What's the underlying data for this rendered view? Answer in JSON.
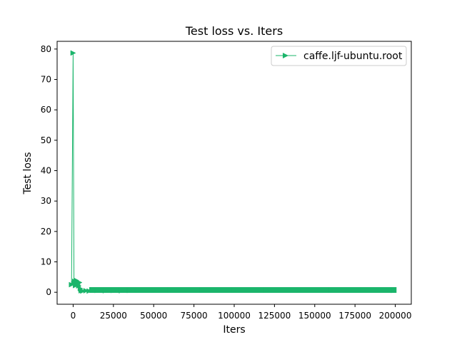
{
  "chart_data": {
    "type": "line",
    "title": "Test loss  vs. Iters",
    "xlabel": "Iters",
    "ylabel": "Test loss",
    "xlim": [
      -9950,
      209950
    ],
    "ylim": [
      -3.94,
      82.54
    ],
    "xticks": [
      0,
      25000,
      50000,
      75000,
      100000,
      125000,
      150000,
      175000,
      200000
    ],
    "xtick_labels": [
      "0",
      "25000",
      "50000",
      "75000",
      "100000",
      "125000",
      "150000",
      "175000",
      "200000"
    ],
    "yticks": [
      0,
      10,
      20,
      30,
      40,
      50,
      60,
      70,
      80
    ],
    "ytick_labels": [
      "0",
      "10",
      "20",
      "30",
      "40",
      "50",
      "60",
      "70",
      "80"
    ],
    "grid": false,
    "legend_position": "top-right",
    "series": [
      {
        "name": "caffe.ljf-ubuntu.root",
        "color": "#1bb56b",
        "marker": "triangle-right",
        "x": [
          -1000,
          0,
          500,
          1000,
          1500,
          2000,
          2500,
          3000,
          3500,
          4000,
          4500,
          5000,
          6000,
          8000,
          10000,
          15000,
          20000,
          25000,
          30000,
          35000,
          40000,
          50000,
          60000,
          80000,
          100000,
          120000,
          140000,
          160000,
          180000,
          199000
        ],
        "y": [
          2.5,
          78.7,
          3.0,
          3.6,
          2.2,
          3.9,
          2.7,
          3.4,
          2.1,
          3.2,
          1.2,
          0.5,
          0.4,
          0.5,
          0.4,
          0.6,
          0.5,
          0.6,
          0.5,
          0.6,
          0.7,
          0.7,
          0.7,
          0.7,
          0.7,
          0.7,
          0.7,
          0.7,
          0.7,
          0.6
        ]
      }
    ]
  }
}
